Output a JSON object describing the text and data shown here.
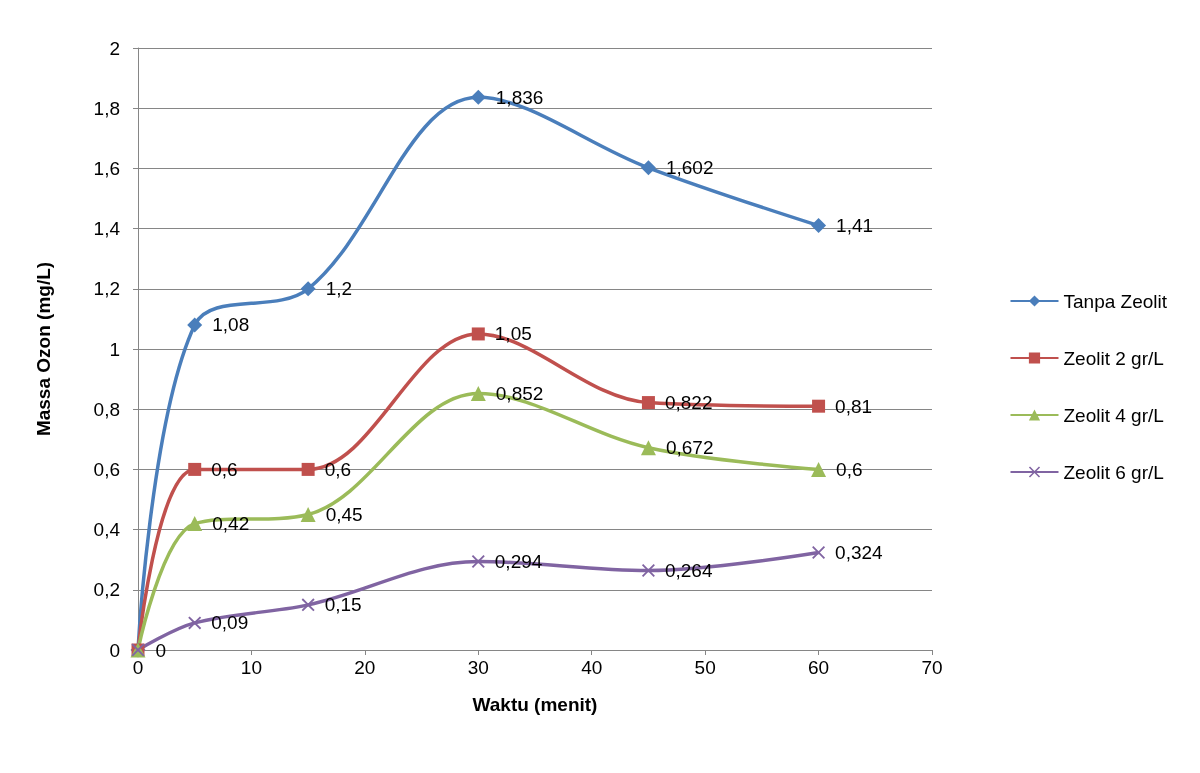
{
  "chart_data": {
    "type": "line",
    "xlabel": "Waktu (menit)",
    "ylabel": "Massa Ozon (mg/L)",
    "x": [
      0,
      5,
      15,
      30,
      45,
      60
    ],
    "series": [
      {
        "name": "Tanpa Zeolit",
        "color": "#4a7ebb",
        "marker": "diamond",
        "values": [
          0,
          1.08,
          1.2,
          1.836,
          1.602,
          1.41
        ],
        "value_labels": [
          "0",
          "1,08",
          "1,2",
          "1,836",
          "1,602",
          "1,41"
        ]
      },
      {
        "name": "Zeolit 2 gr/L",
        "color": "#c0504d",
        "marker": "square",
        "values": [
          0,
          0.6,
          0.6,
          1.05,
          0.822,
          0.81
        ],
        "value_labels": [
          null,
          "0,6",
          "0,6",
          "1,05",
          "0,822",
          "0,81"
        ]
      },
      {
        "name": "Zeolit 4 gr/L",
        "color": "#9bbb59",
        "marker": "triangle",
        "values": [
          0,
          0.42,
          0.45,
          0.852,
          0.672,
          0.6
        ],
        "value_labels": [
          null,
          "0,42",
          "0,45",
          "0,852",
          "0,672",
          "0,6"
        ]
      },
      {
        "name": "Zeolit 6 gr/L",
        "color": "#8064a2",
        "marker": "cross",
        "values": [
          0,
          0.09,
          0.15,
          0.294,
          0.264,
          0.324
        ],
        "value_labels": [
          null,
          "0,09",
          "0,15",
          "0,294",
          "0,264",
          "0,324"
        ]
      }
    ],
    "xlim": [
      0,
      70
    ],
    "xticks": [
      0,
      10,
      20,
      30,
      40,
      50,
      60,
      70
    ],
    "ylim": [
      0,
      2
    ],
    "yticks": [
      0,
      {
        "value": 0.2,
        "label": "0,2"
      },
      {
        "value": 0.4,
        "label": "0,4"
      },
      {
        "value": 0.6,
        "label": "0,6"
      },
      {
        "value": 0.8,
        "label": "0,8"
      },
      1,
      {
        "value": 1.2,
        "label": "1,2"
      },
      {
        "value": 1.4,
        "label": "1,4"
      },
      {
        "value": 1.6,
        "label": "1,6"
      },
      {
        "value": 1.8,
        "label": "1,8"
      },
      2
    ],
    "grid": "y",
    "legend": "right",
    "line_style": "solid"
  }
}
